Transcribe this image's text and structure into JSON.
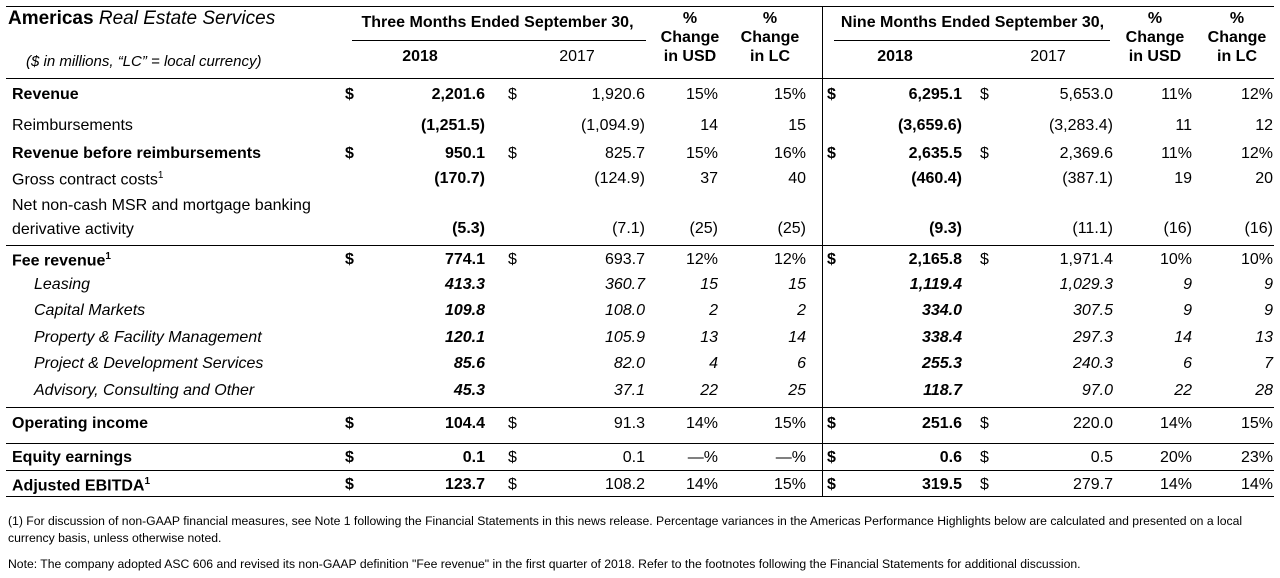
{
  "header": {
    "title_bold": "Americas",
    "title_italic": "Real Estate Services",
    "subtitle": "($ in millions, “LC” = local currency)",
    "three_months": "Three Months Ended September 30,",
    "nine_months": "Nine Months Ended September 30,",
    "year_current": "2018",
    "year_prior": "2017",
    "pct_symbol": "%",
    "pct_usd_line1": "Change",
    "pct_usd_line2": "in USD",
    "pct_lc_line1": "Change",
    "pct_lc_line2": "in LC"
  },
  "rows": [
    {
      "label": "Revenue",
      "style": "bold",
      "dollar": true,
      "q18": "2,201.6",
      "q17": "1,920.6",
      "q_usd": "15%",
      "q_lc": "15%",
      "n18": "6,295.1",
      "n17": "5,653.0",
      "n_usd": "11%",
      "n_lc": "12%"
    },
    {
      "label": "Reimbursements",
      "style": "normal",
      "dollar": false,
      "q18": "(1,251.5)",
      "q17": "(1,094.9)",
      "q_usd": "14",
      "q_lc": "15",
      "n18": "(3,659.6)",
      "n17": "(3,283.4)",
      "n_usd": "11",
      "n_lc": "12"
    },
    {
      "label": "Revenue before reimbursements",
      "style": "bold",
      "dollar": true,
      "q18": "950.1",
      "q17": "825.7",
      "q_usd": "15%",
      "q_lc": "16%",
      "n18": "2,635.5",
      "n17": "2,369.6",
      "n_usd": "11%",
      "n_lc": "12%"
    },
    {
      "label": "Gross contract costs",
      "sup": "1",
      "style": "normal",
      "dollar": false,
      "q18": "(170.7)",
      "q17": "(124.9)",
      "q_usd": "37",
      "q_lc": "40",
      "n18": "(460.4)",
      "n17": "(387.1)",
      "n_usd": "19",
      "n_lc": "20"
    },
    {
      "label": "Net non-cash MSR and mortgage banking",
      "label2": "derivative activity",
      "style": "normal",
      "dollar": false,
      "q18": "(5.3)",
      "q17": "(7.1)",
      "q_usd": "(25)",
      "q_lc": "(25)",
      "n18": "(9.3)",
      "n17": "(11.1)",
      "n_usd": "(16)",
      "n_lc": "(16)"
    },
    {
      "label": "Fee revenue",
      "sup": "1",
      "style": "bold",
      "dollar": true,
      "q18": "774.1",
      "q17": "693.7",
      "q_usd": "12%",
      "q_lc": "12%",
      "n18": "2,165.8",
      "n17": "1,971.4",
      "n_usd": "10%",
      "n_lc": "10%"
    },
    {
      "label": "Leasing",
      "style": "italic",
      "dollar": false,
      "q18": "413.3",
      "q17": "360.7",
      "q_usd": "15",
      "q_lc": "15",
      "n18": "1,119.4",
      "n17": "1,029.3",
      "n_usd": "9",
      "n_lc": "9"
    },
    {
      "label": "Capital Markets",
      "style": "italic",
      "dollar": false,
      "q18": "109.8",
      "q17": "108.0",
      "q_usd": "2",
      "q_lc": "2",
      "n18": "334.0",
      "n17": "307.5",
      "n_usd": "9",
      "n_lc": "9"
    },
    {
      "label": "Property & Facility Management",
      "style": "italic",
      "dollar": false,
      "q18": "120.1",
      "q17": "105.9",
      "q_usd": "13",
      "q_lc": "14",
      "n18": "338.4",
      "n17": "297.3",
      "n_usd": "14",
      "n_lc": "13"
    },
    {
      "label": "Project & Development Services",
      "style": "italic",
      "dollar": false,
      "q18": "85.6",
      "q17": "82.0",
      "q_usd": "4",
      "q_lc": "6",
      "n18": "255.3",
      "n17": "240.3",
      "n_usd": "6",
      "n_lc": "7"
    },
    {
      "label": "Advisory, Consulting and Other",
      "style": "italic",
      "dollar": false,
      "q18": "45.3",
      "q17": "37.1",
      "q_usd": "22",
      "q_lc": "25",
      "n18": "118.7",
      "n17": "97.0",
      "n_usd": "22",
      "n_lc": "28"
    },
    {
      "label": "Operating income",
      "style": "bold",
      "dollar": true,
      "q18": "104.4",
      "q17": "91.3",
      "q_usd": "14%",
      "q_lc": "15%",
      "n18": "251.6",
      "n17": "220.0",
      "n_usd": "14%",
      "n_lc": "15%"
    },
    {
      "label": "Equity earnings",
      "style": "bold",
      "dollar": true,
      "q18": "0.1",
      "q17": "0.1",
      "q_usd": "—%",
      "q_lc": "—%",
      "n18": "0.6",
      "n17": "0.5",
      "n_usd": "20%",
      "n_lc": "23%"
    },
    {
      "label": "Adjusted EBITDA",
      "sup": "1",
      "style": "bold",
      "dollar": true,
      "q18": "123.7",
      "q17": "108.2",
      "q_usd": "14%",
      "q_lc": "15%",
      "n18": "319.5",
      "n17": "279.7",
      "n_usd": "14%",
      "n_lc": "14%"
    }
  ],
  "dollar_sign": "$",
  "footnotes": {
    "note1": "(1) For discussion of non-GAAP financial measures, see Note 1 following the Financial Statements in this news release. Percentage variances in the Americas Performance Highlights below are calculated and presented on a local currency basis, unless otherwise noted.",
    "note2": "Note: The company adopted ASC 606 and revised its non-GAAP definition \"Fee revenue\" in the first quarter of 2018. Refer to the footnotes following the Financial Statements for additional discussion."
  }
}
